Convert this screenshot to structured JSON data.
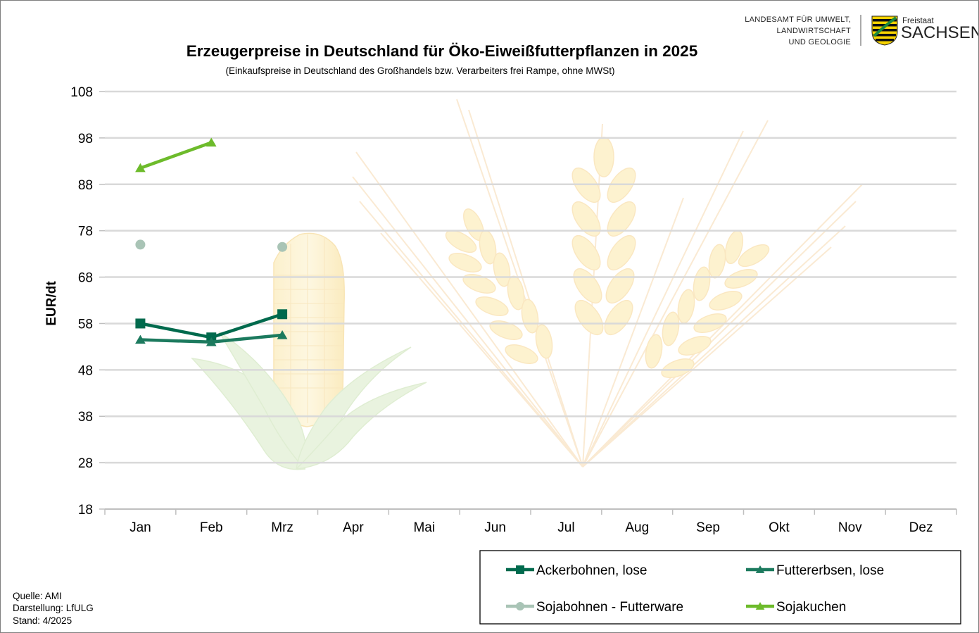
{
  "header": {
    "agency_lines": [
      "LANDESAMT FÜR UMWELT,",
      "LANDWIRTSCHAFT",
      "UND GEOLOGIE"
    ],
    "logo_small": "Freistaat",
    "logo_big": "SACHSEN"
  },
  "footer": {
    "lines": [
      "Quelle:  AMI",
      "Darstellung:  LfULG",
      "Stand:  4/2025"
    ]
  },
  "colors": {
    "gridline": "#d9d9d9",
    "ackerbohnen": "#006a4d",
    "futtererbsen": "#1c7a5e",
    "sojabohnen": "#a9c4b6",
    "sojakuchen": "#6dbb2b"
  },
  "chart_data": {
    "type": "line",
    "title": "Erzeugerpreise in Deutschland für Öko-Eiweißfutterpflanzen in 2025",
    "subtitle": "(Einkaufspreise  in Deutschland  des Großhandels  bzw. Verarbeiters  frei  Rampe,  ohne  MWSt)",
    "xlabel": "",
    "ylabel": "EUR/dt",
    "categories": [
      "Jan",
      "Feb",
      "Mrz",
      "Apr",
      "Mai",
      "Jun",
      "Jul",
      "Aug",
      "Sep",
      "Okt",
      "Nov",
      "Dez"
    ],
    "ylim": [
      18,
      108
    ],
    "yticks": [
      18,
      28,
      38,
      48,
      58,
      68,
      78,
      88,
      98,
      108
    ],
    "grid": true,
    "legend_position": "bottom-right",
    "series": [
      {
        "name": "Ackerbohnen, lose",
        "marker": "square",
        "color": "#006a4d",
        "values": [
          58,
          55,
          60,
          null,
          null,
          null,
          null,
          null,
          null,
          null,
          null,
          null
        ]
      },
      {
        "name": "Futtererbsen, lose",
        "marker": "triangle",
        "color": "#1c7a5e",
        "values": [
          54.5,
          54,
          55.5,
          null,
          null,
          null,
          null,
          null,
          null,
          null,
          null,
          null
        ]
      },
      {
        "name": "Sojabohnen - Futterware",
        "marker": "circle",
        "color": "#a9c4b6",
        "values": [
          75,
          null,
          74.5,
          null,
          null,
          null,
          null,
          null,
          null,
          null,
          null,
          null
        ]
      },
      {
        "name": "Sojakuchen",
        "marker": "triangle",
        "color": "#6dbb2b",
        "values": [
          91.5,
          97,
          null,
          null,
          null,
          null,
          null,
          null,
          null,
          null,
          null,
          null
        ]
      }
    ]
  }
}
